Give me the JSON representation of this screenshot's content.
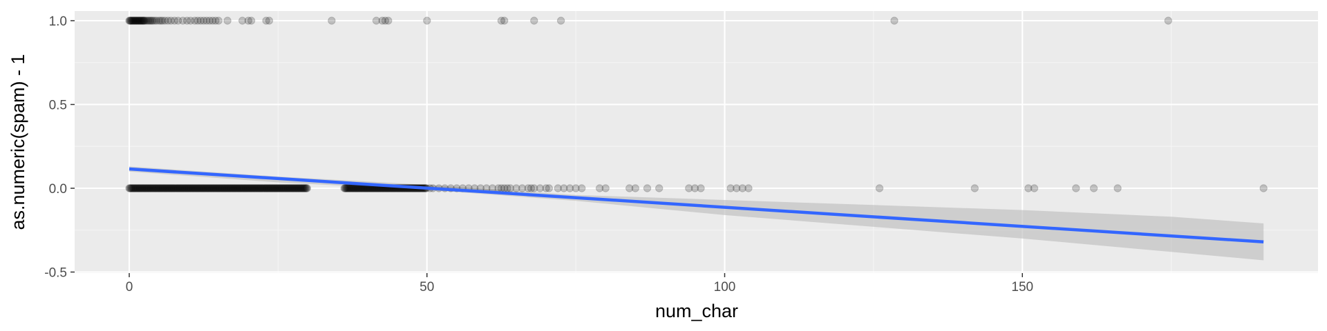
{
  "chart_data": {
    "type": "scatter",
    "xlabel": "num_char",
    "ylabel": "as.numeric(spam) - 1",
    "xlim": [
      -9.5,
      198.5
    ],
    "ylim": [
      -0.5,
      1.06
    ],
    "x_ticks": [
      0,
      50,
      100,
      150
    ],
    "x_tick_labels": [
      "0",
      "50",
      "100",
      "150"
    ],
    "y_ticks": [
      -0.5,
      0.0,
      0.5,
      1.0
    ],
    "y_tick_labels": [
      "-0.5",
      "0.0",
      "0.5",
      "1.0"
    ],
    "grid": true,
    "legend": "none",
    "colors": {
      "panel_bg": "#ebebeb",
      "grid_major": "#ffffff",
      "grid_minor": "#f5f5f5",
      "point": "#000000",
      "point_alpha": 0.2,
      "fit_line": "#3366ff",
      "ribbon": "#bfbfbf"
    },
    "series": [
      {
        "points_y1": [
          0,
          0.1,
          0.2,
          0.3,
          0.4,
          0.5,
          0.6,
          0.7,
          0.8,
          0.9,
          1.0,
          1.1,
          1.2,
          1.3,
          1.4,
          1.5,
          1.6,
          1.7,
          1.8,
          1.9,
          2.0,
          2.1,
          2.2,
          2.3,
          2.4,
          2.5,
          2.6,
          2.8,
          3.0,
          3.2,
          3.4,
          3.6,
          3.8,
          4.0,
          4.3,
          4.6,
          5.0,
          5.3,
          5.6,
          6.0,
          6.5,
          7.0,
          7.6,
          8.2,
          9.0,
          9.7,
          10.3,
          11.0,
          11.5,
          12.0,
          12.5,
          13.0,
          13.5,
          14.0,
          14.5,
          15.0,
          16.5,
          19.0,
          20.0,
          20.5,
          23.0,
          23.5,
          34,
          41.5,
          42.5,
          43.0,
          43.5,
          50,
          62.5,
          63,
          68,
          72.5,
          128.5,
          174.5
        ],
        "points_y0_dense_range": [
          0,
          50
        ],
        "points_y0_sparse": [
          50.5,
          51,
          52,
          53,
          54,
          55,
          56,
          57,
          58,
          59,
          60,
          61,
          62,
          62.5,
          63,
          63.5,
          64,
          65,
          66,
          67,
          67.5,
          68,
          69,
          70,
          70.5,
          72,
          73,
          74,
          75,
          76,
          79,
          80,
          84,
          85,
          87,
          89,
          94,
          95,
          96,
          101,
          102,
          103,
          104,
          126,
          142,
          151,
          152,
          159,
          162,
          166,
          190.5
        ],
        "fit_line": {
          "x": [
            0,
            190.5
          ],
          "y": [
            0.115,
            -0.32
          ]
        },
        "ribbon": {
          "x": [
            0,
            25,
            50,
            75,
            100,
            125,
            150,
            175,
            190.5
          ],
          "lower": [
            0.1,
            0.035,
            -0.01,
            -0.075,
            -0.16,
            -0.23,
            -0.3,
            -0.38,
            -0.43
          ],
          "upper": [
            0.13,
            0.07,
            0.02,
            -0.04,
            -0.07,
            -0.1,
            -0.13,
            -0.17,
            -0.21
          ]
        }
      }
    ]
  }
}
